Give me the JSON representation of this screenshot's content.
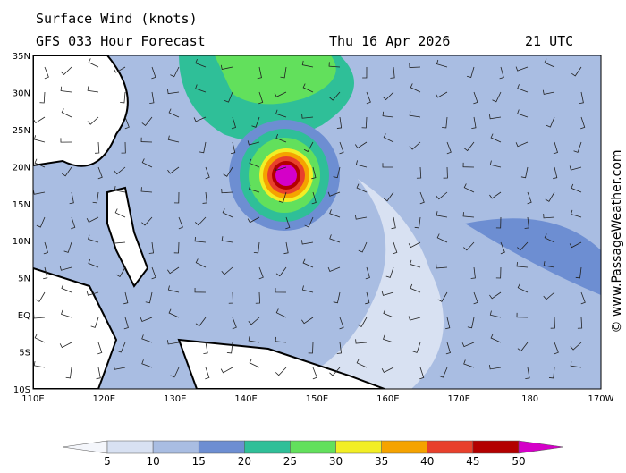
{
  "header": {
    "title": "Surface Wind (knots)",
    "subtitle": "GFS 033 Hour Forecast",
    "date": "Thu 16 Apr 2026",
    "time": "21 UTC"
  },
  "lat_labels": [
    "35N",
    "30N",
    "25N",
    "20N",
    "15N",
    "10N",
    "5N",
    "EQ",
    "5S",
    "10S"
  ],
  "lon_labels": [
    "110E",
    "120E",
    "130E",
    "140E",
    "150E",
    "160E",
    "170E",
    "180",
    "170W"
  ],
  "colorbar": {
    "labels": [
      5,
      10,
      15,
      20,
      25,
      30,
      35,
      40,
      45,
      50
    ],
    "below_color": "#f4f6fb",
    "colors": [
      "#d8e1f2",
      "#a9bde2",
      "#6d8ed2",
      "#2fbf98",
      "#62e05c",
      "#f2ee25",
      "#f5a300",
      "#e8402c",
      "#b30000"
    ],
    "above_color": "#d400c8"
  },
  "credit": "© www.PassageWeather.com"
}
